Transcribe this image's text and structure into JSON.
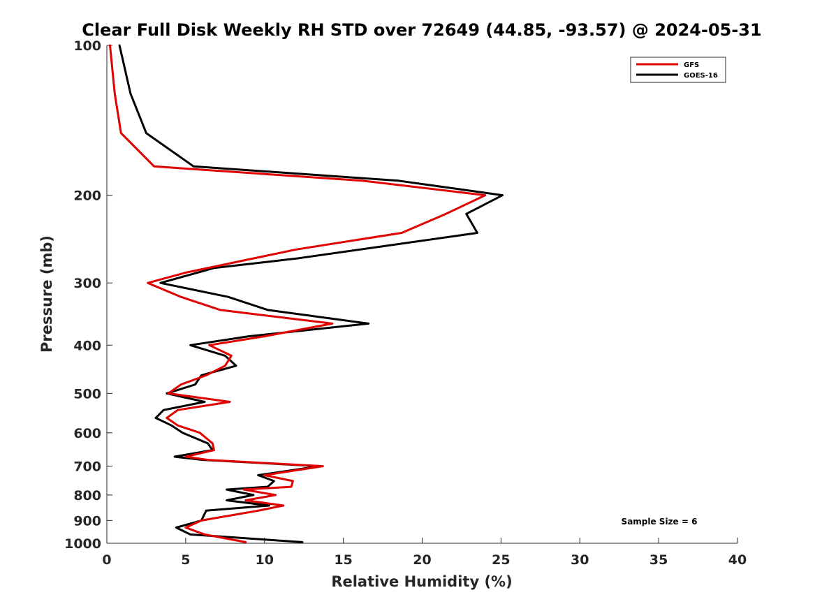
{
  "chart_data": {
    "type": "line",
    "title": "Clear Full Disk Weekly RH STD over 72649 (44.85, -93.57) @ 2024-05-31",
    "xlabel": "Relative Humidity (%)",
    "ylabel": "Pressure (mb)",
    "xlim": [
      0,
      40
    ],
    "ylim": [
      100,
      1000
    ],
    "y_scale": "log",
    "y_reversed": true,
    "x_ticks": [
      "0",
      "5",
      "10",
      "15",
      "20",
      "25",
      "30",
      "35",
      "40"
    ],
    "y_ticks": [
      "100",
      "200",
      "300",
      "400",
      "500",
      "600",
      "700",
      "800",
      "900",
      "1000"
    ],
    "grid": false,
    "legend_position": "top-right",
    "annotation": "Sample Size = 6",
    "series": [
      {
        "name": "GFS",
        "color": "#e00000",
        "points": [
          [
            0.2,
            100
          ],
          [
            0.5,
            125
          ],
          [
            0.9,
            150
          ],
          [
            3.0,
            175
          ],
          [
            16.2,
            187
          ],
          [
            24.0,
            200
          ],
          [
            21.5,
            218
          ],
          [
            18.7,
            238
          ],
          [
            12.0,
            257
          ],
          [
            5.0,
            286
          ],
          [
            2.6,
            300
          ],
          [
            4.7,
            320
          ],
          [
            7.2,
            340
          ],
          [
            14.3,
            362
          ],
          [
            10.0,
            384
          ],
          [
            6.5,
            400
          ],
          [
            7.9,
            420
          ],
          [
            7.5,
            440
          ],
          [
            6.3,
            460
          ],
          [
            4.7,
            480
          ],
          [
            3.9,
            500
          ],
          [
            7.8,
            520
          ],
          [
            4.5,
            540
          ],
          [
            3.8,
            560
          ],
          [
            4.5,
            580
          ],
          [
            5.9,
            600
          ],
          [
            6.7,
            630
          ],
          [
            6.8,
            650
          ],
          [
            5.0,
            670
          ],
          [
            6.4,
            680
          ],
          [
            13.7,
            700
          ],
          [
            10.0,
            730
          ],
          [
            11.8,
            750
          ],
          [
            11.7,
            770
          ],
          [
            8.7,
            780
          ],
          [
            10.7,
            800
          ],
          [
            8.8,
            820
          ],
          [
            11.2,
            840
          ],
          [
            9.6,
            860
          ],
          [
            6.0,
            900
          ],
          [
            5.0,
            930
          ],
          [
            6.2,
            960
          ],
          [
            8.8,
            995
          ]
        ]
      },
      {
        "name": "GOES-16",
        "color": "#000000",
        "points": [
          [
            0.8,
            100
          ],
          [
            1.5,
            125
          ],
          [
            2.5,
            150
          ],
          [
            5.5,
            175
          ],
          [
            18.5,
            187
          ],
          [
            25.1,
            200
          ],
          [
            22.8,
            218
          ],
          [
            23.5,
            238
          ],
          [
            12.0,
            268
          ],
          [
            6.8,
            280
          ],
          [
            3.4,
            300
          ],
          [
            7.7,
            320
          ],
          [
            10.2,
            340
          ],
          [
            16.6,
            362
          ],
          [
            9.0,
            384
          ],
          [
            5.3,
            400
          ],
          [
            7.5,
            420
          ],
          [
            8.2,
            440
          ],
          [
            6.0,
            460
          ],
          [
            5.6,
            480
          ],
          [
            3.8,
            500
          ],
          [
            6.2,
            520
          ],
          [
            3.6,
            540
          ],
          [
            3.1,
            560
          ],
          [
            4.1,
            580
          ],
          [
            4.8,
            600
          ],
          [
            6.4,
            630
          ],
          [
            6.7,
            650
          ],
          [
            4.3,
            670
          ],
          [
            6.1,
            680
          ],
          [
            13.5,
            700
          ],
          [
            9.6,
            730
          ],
          [
            10.6,
            750
          ],
          [
            10.2,
            770
          ],
          [
            7.6,
            780
          ],
          [
            9.3,
            800
          ],
          [
            7.6,
            820
          ],
          [
            10.3,
            840
          ],
          [
            6.3,
            860
          ],
          [
            6.0,
            900
          ],
          [
            4.4,
            930
          ],
          [
            5.3,
            960
          ],
          [
            12.4,
            995
          ]
        ]
      }
    ]
  }
}
